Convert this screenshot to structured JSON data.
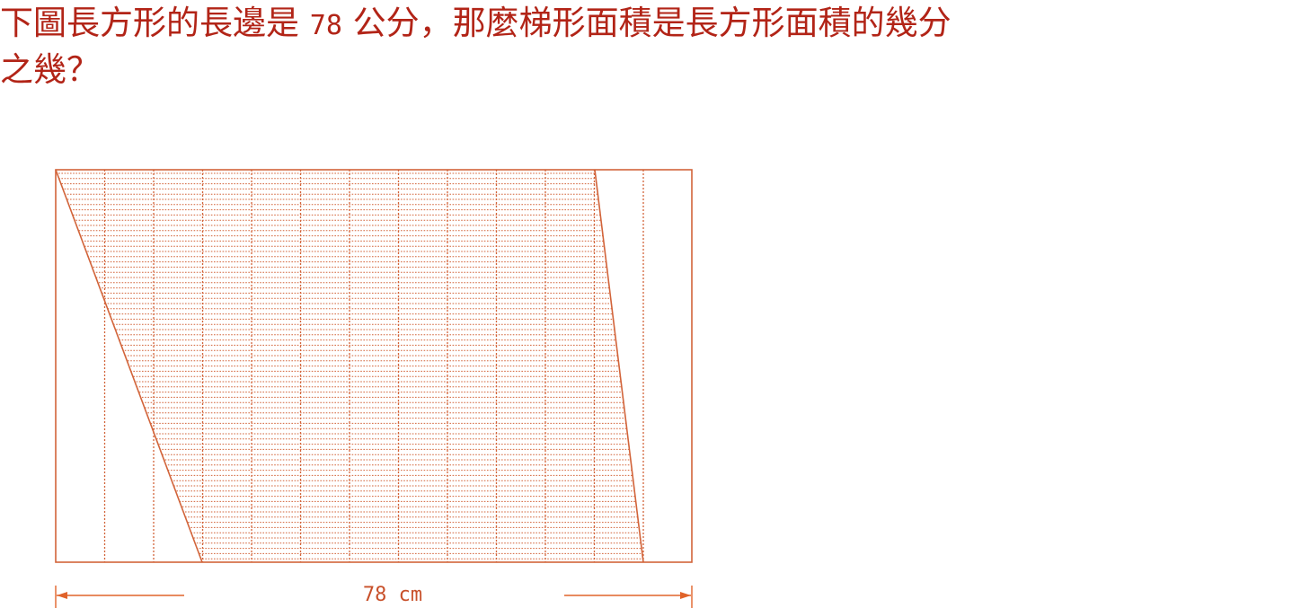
{
  "question": {
    "line1_a": "下圖長方形的長邊是 ",
    "line1_num": "78",
    "line1_b": " 公分，那麼梯形面積是長方形面積的幾分",
    "line2": "之幾？"
  },
  "figure": {
    "rectangle_length_label": "78 cm",
    "columns": 13,
    "trapezoid": {
      "top_start_column": 0,
      "top_end_column": 11,
      "bottom_start_column": 3,
      "bottom_end_column": 12
    }
  },
  "colors": {
    "question_text": "#b22417",
    "figure_stroke": "#d2643a",
    "grid_dots": "#d2643a",
    "dimension_arrow": "#e0632a"
  }
}
